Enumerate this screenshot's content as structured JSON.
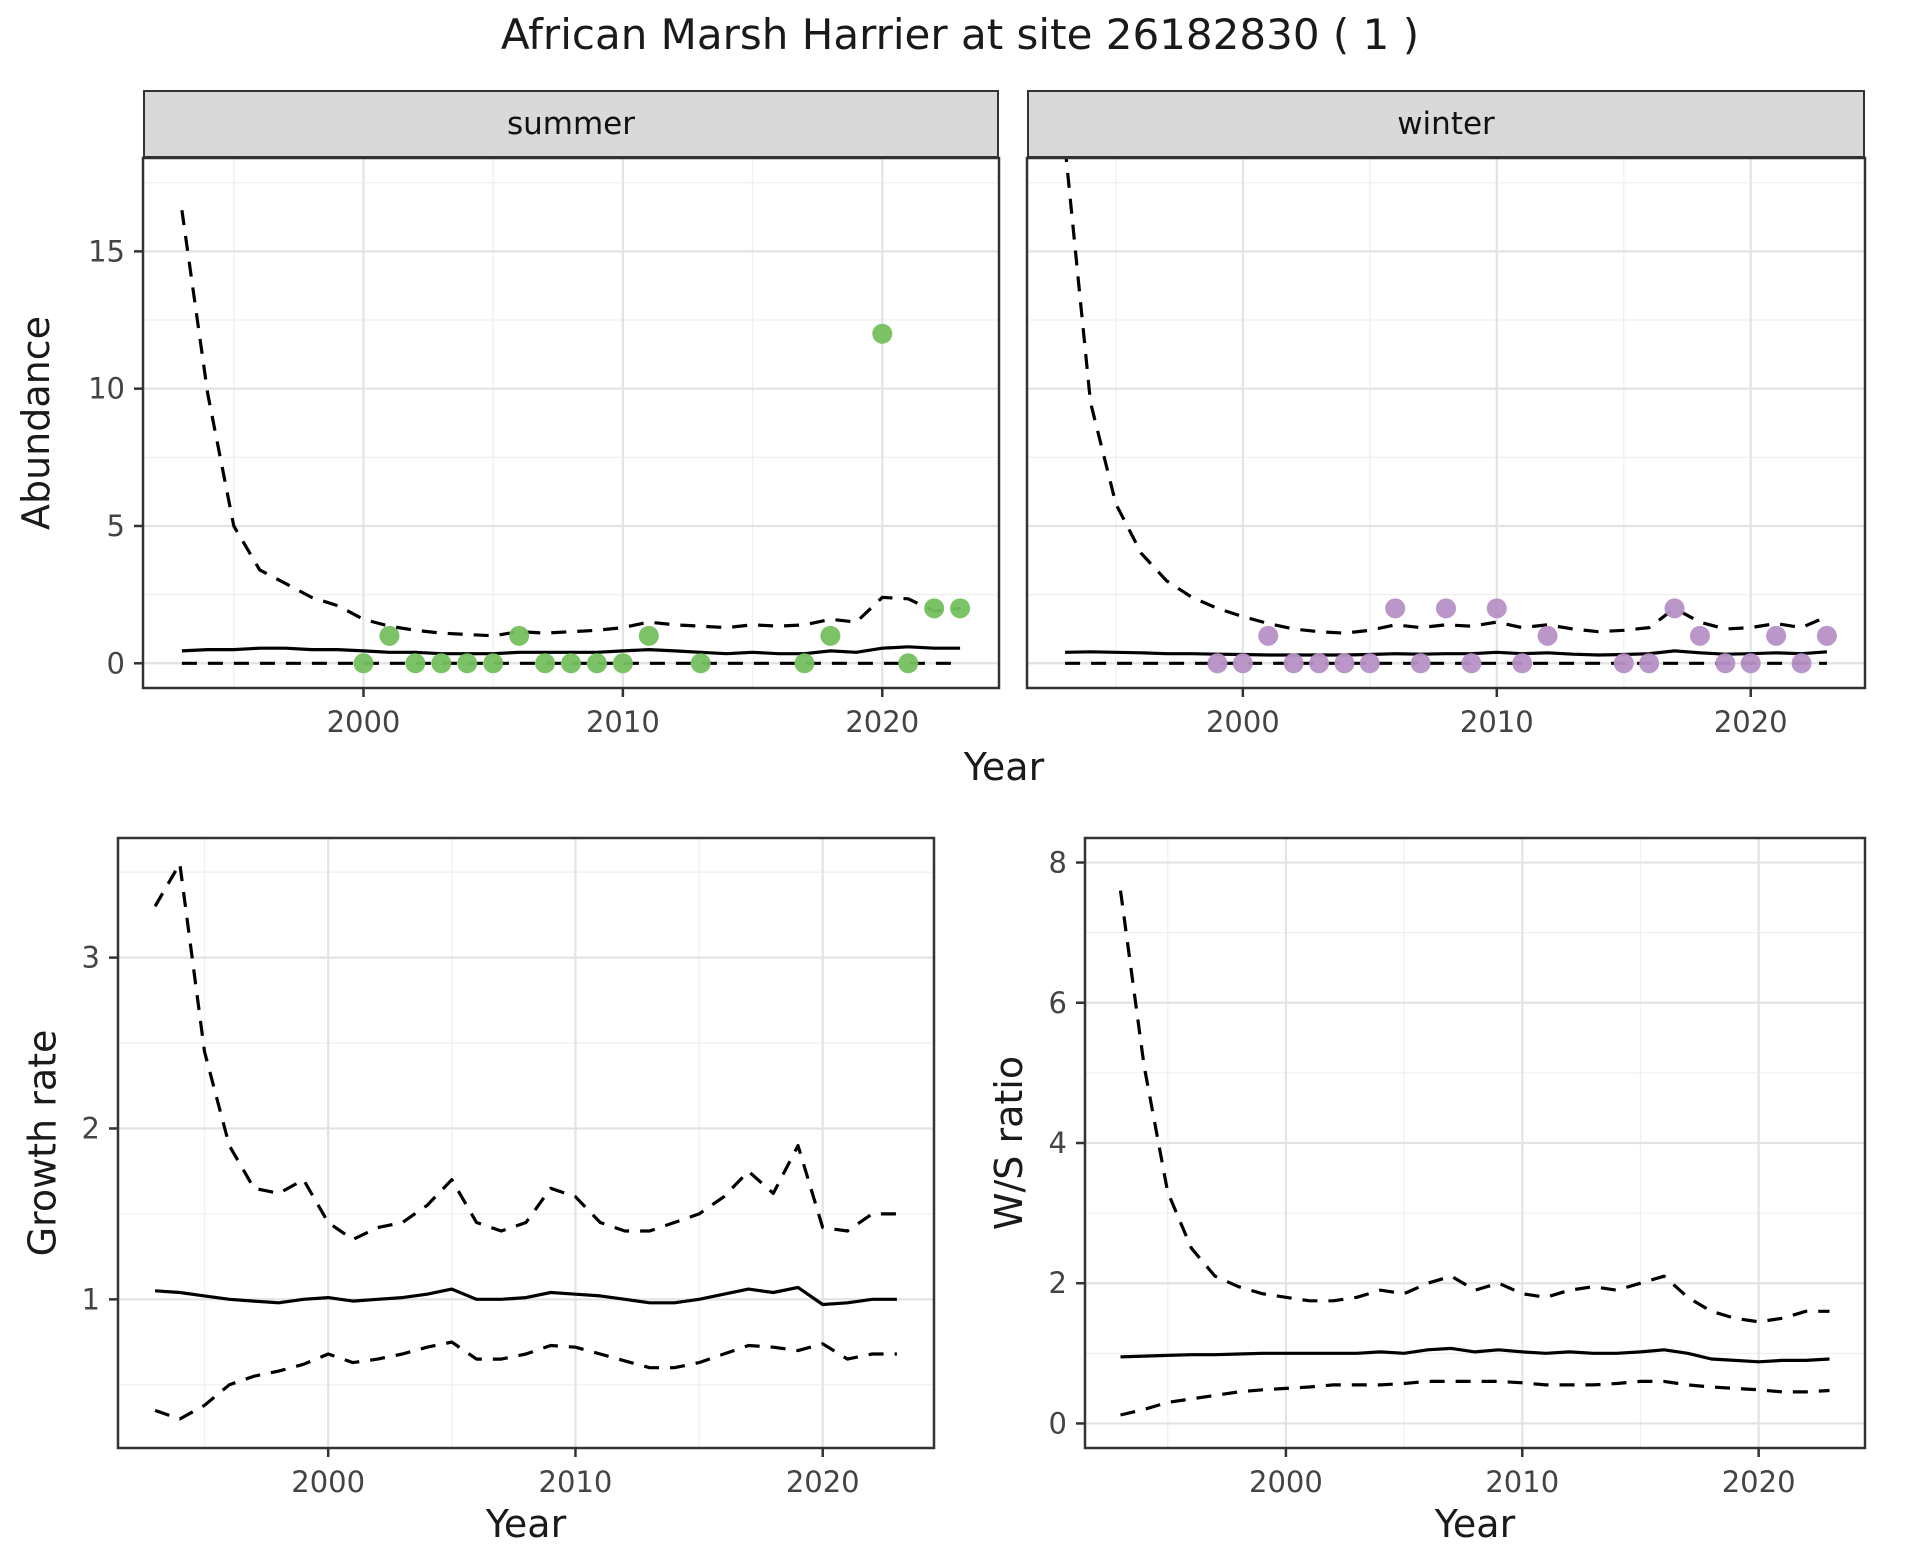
{
  "title": "African Marsh Harrier at site 26182830 ( 1 )",
  "axis": {
    "x_label": "Year",
    "abundance_label": "Abundance",
    "growth_label": "Growth rate",
    "ws_label": "W/S ratio"
  },
  "facets": {
    "summer": "summer",
    "winter": "winter"
  },
  "colors": {
    "summer_point": "#74c05e",
    "winter_point": "#b690c6",
    "line": "#000000",
    "border": "#333333",
    "strip_bg": "#d9d9d9",
    "grid_major": "#e3e3e3",
    "grid_minor": "#f0f0f0",
    "tick_label": "#444444"
  },
  "chart_data": [
    {
      "key": "summer_abundance",
      "type": "line+scatter",
      "facet_label": "summer",
      "ylabel": "Abundance",
      "xlabel": "Year",
      "xlim": [
        1991.5,
        2024.5
      ],
      "ylim": [
        -0.9,
        18.4
      ],
      "xticks": [
        2000,
        2010,
        2020
      ],
      "yticks": [
        0,
        5,
        10,
        15
      ],
      "show_yticks": true,
      "point_color_key": "summer_point",
      "x": [
        1993,
        1994,
        1995,
        1996,
        1997,
        1998,
        1999,
        2000,
        2001,
        2002,
        2003,
        2004,
        2005,
        2006,
        2007,
        2008,
        2009,
        2010,
        2011,
        2012,
        2013,
        2014,
        2015,
        2016,
        2017,
        2018,
        2019,
        2020,
        2021,
        2022,
        2023
      ],
      "series": {
        "upper": [
          16.5,
          9.8,
          5.0,
          3.4,
          2.9,
          2.4,
          2.1,
          1.6,
          1.35,
          1.2,
          1.1,
          1.05,
          1.0,
          1.15,
          1.1,
          1.15,
          1.2,
          1.3,
          1.5,
          1.4,
          1.35,
          1.3,
          1.4,
          1.35,
          1.4,
          1.6,
          1.5,
          2.4,
          2.35,
          1.9,
          2.0
        ],
        "median": [
          0.45,
          0.5,
          0.5,
          0.55,
          0.55,
          0.5,
          0.5,
          0.45,
          0.4,
          0.4,
          0.35,
          0.35,
          0.35,
          0.4,
          0.4,
          0.4,
          0.4,
          0.45,
          0.5,
          0.45,
          0.4,
          0.35,
          0.4,
          0.35,
          0.35,
          0.45,
          0.4,
          0.55,
          0.6,
          0.55,
          0.55
        ],
        "lower": [
          0,
          0,
          0,
          0,
          0,
          0,
          0,
          0,
          0,
          0,
          0,
          0,
          0,
          0,
          0,
          0,
          0,
          0,
          0,
          0,
          0,
          0,
          0,
          0,
          0,
          0,
          0,
          0,
          0,
          0,
          0
        ]
      },
      "points": {
        "x": [
          2000,
          2001,
          2002,
          2003,
          2004,
          2005,
          2006,
          2007,
          2008,
          2009,
          2010,
          2011,
          2013,
          2017,
          2018,
          2020,
          2021,
          2022,
          2023
        ],
        "y": [
          0,
          1,
          0,
          0,
          0,
          0,
          1,
          0,
          0,
          0,
          0,
          1,
          0,
          0,
          1,
          12,
          0,
          2,
          2
        ]
      }
    },
    {
      "key": "winter_abundance",
      "type": "line+scatter",
      "facet_label": "winter",
      "ylabel": "Abundance",
      "xlabel": "Year",
      "xlim": [
        1991.5,
        2024.5
      ],
      "ylim": [
        -0.9,
        18.4
      ],
      "xticks": [
        2000,
        2010,
        2020
      ],
      "yticks": [
        0,
        5,
        10,
        15
      ],
      "show_yticks": false,
      "point_color_key": "winter_point",
      "x": [
        1993,
        1994,
        1995,
        1996,
        1997,
        1998,
        1999,
        2000,
        2001,
        2002,
        2003,
        2004,
        2005,
        2006,
        2007,
        2008,
        2009,
        2010,
        2011,
        2012,
        2013,
        2014,
        2015,
        2016,
        2017,
        2018,
        2019,
        2020,
        2021,
        2022,
        2023
      ],
      "series": {
        "upper": [
          18.8,
          9.5,
          5.8,
          4.0,
          3.0,
          2.4,
          2.0,
          1.7,
          1.45,
          1.25,
          1.15,
          1.1,
          1.2,
          1.4,
          1.3,
          1.4,
          1.35,
          1.5,
          1.3,
          1.4,
          1.25,
          1.15,
          1.2,
          1.3,
          2.0,
          1.5,
          1.25,
          1.3,
          1.45,
          1.3,
          1.7
        ],
        "median": [
          0.4,
          0.42,
          0.4,
          0.38,
          0.35,
          0.35,
          0.33,
          0.32,
          0.3,
          0.3,
          0.3,
          0.3,
          0.32,
          0.35,
          0.33,
          0.35,
          0.35,
          0.4,
          0.35,
          0.38,
          0.33,
          0.3,
          0.32,
          0.35,
          0.45,
          0.38,
          0.33,
          0.35,
          0.38,
          0.35,
          0.42
        ],
        "lower": [
          0,
          0,
          0,
          0,
          0,
          0,
          0,
          0,
          0,
          0,
          0,
          0,
          0,
          0,
          0,
          0,
          0,
          0,
          0,
          0,
          0,
          0,
          0,
          0,
          0,
          0,
          0,
          0,
          0,
          0,
          0
        ]
      },
      "points": {
        "x": [
          1999,
          2000,
          2001,
          2002,
          2003,
          2004,
          2005,
          2006,
          2007,
          2008,
          2009,
          2010,
          2011,
          2012,
          2015,
          2016,
          2017,
          2018,
          2019,
          2020,
          2021,
          2022,
          2023
        ],
        "y": [
          0,
          0,
          1,
          0,
          0,
          0,
          0,
          2,
          0,
          2,
          0,
          2,
          0,
          1,
          0,
          0,
          2,
          1,
          0,
          0,
          1,
          0,
          1
        ]
      }
    },
    {
      "key": "growth_rate",
      "type": "line",
      "ylabel": "Growth rate",
      "xlabel": "Year",
      "xlim": [
        1991.5,
        2024.5
      ],
      "ylim": [
        0.13,
        3.7
      ],
      "xticks": [
        2000,
        2010,
        2020
      ],
      "yticks": [
        1,
        2,
        3
      ],
      "show_yticks": true,
      "x": [
        1993,
        1994,
        1995,
        1996,
        1997,
        1998,
        1999,
        2000,
        2001,
        2002,
        2003,
        2004,
        2005,
        2006,
        2007,
        2008,
        2009,
        2010,
        2011,
        2012,
        2013,
        2014,
        2015,
        2016,
        2017,
        2018,
        2019,
        2020,
        2021,
        2022,
        2023
      ],
      "series": {
        "upper": [
          3.3,
          3.55,
          2.45,
          1.9,
          1.65,
          1.62,
          1.7,
          1.45,
          1.35,
          1.42,
          1.45,
          1.55,
          1.7,
          1.45,
          1.4,
          1.45,
          1.65,
          1.6,
          1.45,
          1.4,
          1.4,
          1.45,
          1.5,
          1.6,
          1.75,
          1.62,
          1.9,
          1.42,
          1.4,
          1.5,
          1.5
        ],
        "median": [
          1.05,
          1.04,
          1.02,
          1.0,
          0.99,
          0.98,
          1.0,
          1.01,
          0.99,
          1.0,
          1.01,
          1.03,
          1.06,
          1.0,
          1.0,
          1.01,
          1.04,
          1.03,
          1.02,
          1.0,
          0.98,
          0.98,
          1.0,
          1.03,
          1.06,
          1.04,
          1.07,
          0.97,
          0.98,
          1.0,
          1.0
        ],
        "lower": [
          0.35,
          0.3,
          0.38,
          0.5,
          0.55,
          0.58,
          0.62,
          0.68,
          0.63,
          0.65,
          0.68,
          0.72,
          0.75,
          0.65,
          0.65,
          0.68,
          0.73,
          0.72,
          0.68,
          0.64,
          0.6,
          0.6,
          0.63,
          0.68,
          0.73,
          0.72,
          0.7,
          0.74,
          0.65,
          0.68,
          0.68
        ]
      }
    },
    {
      "key": "ws_ratio",
      "type": "line",
      "ylabel": "W/S ratio",
      "xlabel": "Year",
      "xlim": [
        1991.5,
        2024.5
      ],
      "ylim": [
        -0.35,
        8.35
      ],
      "xticks": [
        2000,
        2010,
        2020
      ],
      "yticks": [
        0,
        2,
        4,
        6,
        8
      ],
      "show_yticks": true,
      "x": [
        1993,
        1994,
        1995,
        1996,
        1997,
        1998,
        1999,
        2000,
        2001,
        2002,
        2003,
        2004,
        2005,
        2006,
        2007,
        2008,
        2009,
        2010,
        2011,
        2012,
        2013,
        2014,
        2015,
        2016,
        2017,
        2018,
        2019,
        2020,
        2021,
        2022,
        2023
      ],
      "series": {
        "upper": [
          7.6,
          5.1,
          3.3,
          2.5,
          2.1,
          1.95,
          1.85,
          1.8,
          1.75,
          1.75,
          1.8,
          1.9,
          1.85,
          2.0,
          2.1,
          1.9,
          2.0,
          1.85,
          1.8,
          1.9,
          1.95,
          1.9,
          2.0,
          2.1,
          1.8,
          1.6,
          1.5,
          1.45,
          1.5,
          1.6,
          1.6
        ],
        "median": [
          0.95,
          0.96,
          0.97,
          0.98,
          0.98,
          0.99,
          1.0,
          1.0,
          1.0,
          1.0,
          1.0,
          1.02,
          1.0,
          1.05,
          1.07,
          1.02,
          1.05,
          1.02,
          1.0,
          1.02,
          1.0,
          1.0,
          1.02,
          1.05,
          1.0,
          0.92,
          0.9,
          0.88,
          0.9,
          0.9,
          0.92
        ],
        "lower": [
          0.12,
          0.2,
          0.3,
          0.35,
          0.4,
          0.45,
          0.48,
          0.5,
          0.52,
          0.55,
          0.55,
          0.55,
          0.57,
          0.6,
          0.6,
          0.6,
          0.6,
          0.58,
          0.55,
          0.55,
          0.55,
          0.57,
          0.6,
          0.6,
          0.55,
          0.52,
          0.5,
          0.48,
          0.45,
          0.45,
          0.47
        ]
      }
    }
  ]
}
